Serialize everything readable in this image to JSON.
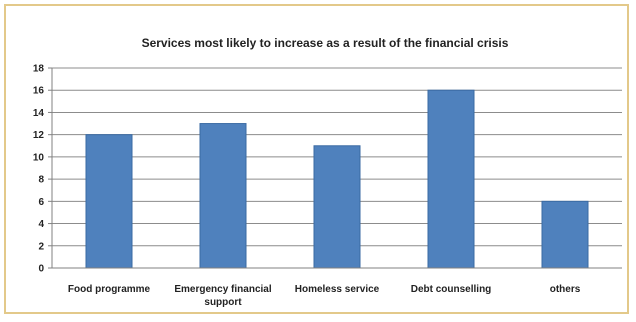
{
  "chart_data": {
    "type": "bar",
    "title": "Services most likely to increase as a result of the financial crisis",
    "xlabel": "",
    "ylabel": "",
    "categories": [
      [
        "Food programme"
      ],
      [
        "Emergency financial",
        "support"
      ],
      [
        "Homeless service"
      ],
      [
        "Debt counselling"
      ],
      [
        "others"
      ]
    ],
    "values": [
      12,
      13,
      11,
      16,
      6
    ],
    "ylim": [
      0,
      18
    ],
    "yticks": [
      0,
      2,
      4,
      6,
      8,
      10,
      12,
      14,
      16,
      18
    ],
    "grid": true,
    "legend": "none",
    "colors": {
      "bar": "#4f81bd",
      "bar_edge": "#3a6aa3",
      "grid": "#8c8c8c",
      "axis": "#808080"
    }
  }
}
